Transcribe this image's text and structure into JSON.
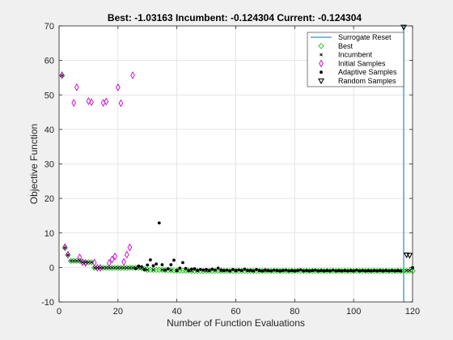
{
  "chart_data": {
    "type": "scatter",
    "title": "Best: -1.03163 Incumbent: -0.124304 Current: -0.124304",
    "xlabel": "Number of Function Evaluations",
    "ylabel": "Objective Function",
    "xlim": [
      0,
      120
    ],
    "ylim": [
      -10,
      70
    ],
    "xticks": [
      0,
      20,
      40,
      60,
      80,
      100,
      120
    ],
    "yticks": [
      -10,
      0,
      10,
      20,
      30,
      40,
      50,
      60,
      70
    ],
    "grid": true,
    "legend_position": "top-right",
    "surrogate_reset_x": [
      117
    ],
    "legend": [
      {
        "key": "surrogate_reset",
        "label": "Surrogate Reset"
      },
      {
        "key": "best",
        "label": "Best"
      },
      {
        "key": "incumbent",
        "label": "Incumbent"
      },
      {
        "key": "initial",
        "label": "Initial Samples"
      },
      {
        "key": "adaptive",
        "label": "Adaptive Samples"
      },
      {
        "key": "random",
        "label": "Random Samples"
      }
    ],
    "series": {
      "best": {
        "name": "Best",
        "color": "#00cc00",
        "x": [
          1,
          2,
          3,
          4,
          5,
          6,
          7,
          8,
          9,
          10,
          11,
          12,
          13,
          14,
          15,
          16,
          17,
          18,
          19,
          20,
          21,
          22,
          23,
          24,
          25,
          26,
          27,
          28,
          29,
          30,
          31,
          32,
          33,
          34,
          35,
          36,
          37,
          38,
          39,
          40,
          41,
          42,
          43,
          44,
          45,
          46,
          47,
          48,
          49,
          50,
          51,
          52,
          53,
          54,
          55,
          56,
          57,
          58,
          59,
          60,
          61,
          62,
          63,
          64,
          65,
          66,
          67,
          68,
          69,
          70,
          71,
          72,
          73,
          74,
          75,
          76,
          77,
          78,
          79,
          80,
          81,
          82,
          83,
          84,
          85,
          86,
          87,
          88,
          89,
          90,
          91,
          92,
          93,
          94,
          95,
          96,
          97,
          98,
          99,
          100,
          101,
          102,
          103,
          104,
          105,
          106,
          107,
          108,
          109,
          110,
          111,
          112,
          113,
          114,
          115,
          116,
          117,
          118,
          119,
          120
        ],
        "y": [
          55.6,
          5.7,
          3.6,
          1.9,
          1.9,
          1.9,
          1.9,
          1.5,
          1.5,
          1.5,
          1.5,
          -0.1,
          -0.1,
          -0.1,
          -0.1,
          -0.1,
          -0.1,
          -0.1,
          -0.1,
          -0.1,
          -0.1,
          -0.1,
          -0.1,
          -0.1,
          -0.1,
          -0.1,
          -0.1,
          -0.2,
          -0.4,
          -0.7,
          -0.7,
          -0.7,
          -0.7,
          -0.7,
          -0.7,
          -0.8,
          -0.8,
          -0.8,
          -0.9,
          -0.9,
          -0.9,
          -0.9,
          -0.9,
          -0.9,
          -1.0,
          -1.0,
          -1.0,
          -1.0,
          -1.0,
          -1.0,
          -1.0,
          -1.0,
          -1.0,
          -1.0,
          -1.0,
          -1.0,
          -1.0,
          -1.0,
          -1.0,
          -1.0,
          -1.0,
          -1.0,
          -1.0,
          -1.0,
          -1.0,
          -1.0,
          -1.0,
          -1.0,
          -1.0,
          -1.0,
          -1.0,
          -1.0,
          -1.0,
          -1.0,
          -1.0,
          -1.0,
          -1.0,
          -1.0,
          -1.0,
          -1.0,
          -1.0,
          -1.0,
          -1.0,
          -1.0,
          -1.0,
          -1.0,
          -1.0,
          -1.0,
          -1.0,
          -1.0,
          -1.0,
          -1.0,
          -1.0,
          -1.0,
          -1.0,
          -1.0,
          -1.0,
          -1.0,
          -1.0,
          -1.0,
          -1.0,
          -1.0,
          -1.0,
          -1.0,
          -1.0,
          -1.0,
          -1.0,
          -1.0,
          -1.0,
          -1.0,
          -1.0,
          -1.0,
          -1.0,
          -1.0,
          -1.0,
          -1.0,
          -1.0,
          -1.0,
          -1.0,
          -1.0
        ]
      },
      "incumbent": {
        "name": "Incumbent",
        "color": "#000000",
        "x": [
          1,
          2,
          3,
          4,
          5,
          6,
          7,
          8,
          9,
          10,
          11,
          12,
          13,
          14,
          15,
          16,
          17,
          18,
          19,
          20,
          21,
          22,
          23,
          24,
          25,
          26,
          27,
          28,
          29,
          30,
          32,
          35,
          38,
          40,
          45,
          50,
          55,
          60,
          65,
          70,
          75,
          80,
          85,
          90,
          95,
          100,
          105,
          110,
          115,
          116,
          118,
          119,
          120
        ],
        "y": [
          55.6,
          5.7,
          3.6,
          1.9,
          1.9,
          1.9,
          1.9,
          1.5,
          1.5,
          1.5,
          1.5,
          -0.1,
          -0.1,
          -0.1,
          -0.1,
          -0.1,
          -0.1,
          -0.1,
          -0.1,
          -0.1,
          -0.1,
          -0.1,
          -0.1,
          -0.1,
          -0.1,
          -0.1,
          -0.1,
          -0.2,
          -0.4,
          -0.7,
          -0.7,
          -0.7,
          -0.8,
          -0.9,
          -1.0,
          -1.0,
          -1.0,
          -1.0,
          -1.0,
          -1.0,
          -1.0,
          -1.0,
          -1.0,
          -1.0,
          -1.0,
          -1.0,
          -1.0,
          -1.0,
          -1.0,
          -1.0,
          -0.9,
          -0.9,
          -0.1
        ]
      },
      "initial": {
        "name": "Initial Samples",
        "color": "#cc00cc",
        "x": [
          1,
          2,
          3,
          5,
          6,
          7,
          8,
          9,
          10,
          11,
          12,
          13,
          14,
          15,
          16,
          17,
          18,
          19,
          20,
          21,
          22,
          23,
          24,
          25
        ],
        "y": [
          55.7,
          5.9,
          3.7,
          47.7,
          52.2,
          2.9,
          1.5,
          1.3,
          48.2,
          47.9,
          1.4,
          -0.1,
          -0.1,
          47.7,
          48.1,
          1.3,
          2.3,
          3.2,
          52.2,
          47.6,
          1.6,
          3.7,
          5.8,
          55.7
        ]
      },
      "adaptive": {
        "name": "Adaptive Samples",
        "color": "#000000",
        "x": [
          26,
          27,
          28,
          29,
          30,
          31,
          32,
          33,
          34,
          35,
          36,
          37,
          38,
          39,
          40,
          41,
          42,
          43,
          44,
          45,
          46,
          47,
          48,
          49,
          50,
          51,
          52,
          53,
          54,
          55,
          56,
          57,
          58,
          59,
          60,
          61,
          62,
          63,
          64,
          65,
          66,
          67,
          68,
          69,
          70,
          71,
          72,
          73,
          74,
          75,
          76,
          77,
          78,
          79,
          80,
          81,
          82,
          83,
          84,
          85,
          86,
          87,
          88,
          89,
          90,
          91,
          92,
          93,
          94,
          95,
          96,
          97,
          98,
          99,
          100,
          101,
          102,
          103,
          104,
          105,
          106,
          107,
          108,
          109,
          110,
          111,
          112,
          113,
          114,
          115,
          116,
          120
        ],
        "y": [
          -0.3,
          0.4,
          0.2,
          -0.7,
          0.7,
          2.2,
          0.5,
          1.0,
          12.9,
          0.8,
          -0.8,
          -0.4,
          0.8,
          2.1,
          -0.9,
          -0.2,
          1.4,
          -0.3,
          -0.9,
          -0.5,
          -0.4,
          -0.9,
          -0.6,
          -0.8,
          -0.6,
          -0.9,
          -0.5,
          -0.8,
          -0.2,
          -0.7,
          -0.9,
          -0.8,
          -1.0,
          -0.6,
          -0.9,
          -0.7,
          -0.9,
          -0.5,
          -0.9,
          -0.8,
          -1.0,
          -0.6,
          -0.9,
          -1.0,
          -0.7,
          -0.9,
          -1.0,
          -0.8,
          -0.9,
          -1.0,
          -0.9,
          -0.8,
          -1.0,
          -0.9,
          -1.0,
          -0.9,
          -0.7,
          -1.0,
          -0.9,
          -1.0,
          -0.9,
          -0.8,
          -1.0,
          -0.9,
          -1.0,
          -0.9,
          -1.0,
          -0.8,
          -1.0,
          -0.9,
          -1.0,
          -0.9,
          -1.0,
          -0.9,
          -1.0,
          -0.8,
          -1.0,
          -0.9,
          -1.0,
          -0.9,
          -1.0,
          -0.9,
          -1.0,
          -0.9,
          -1.0,
          -0.9,
          -1.0,
          -0.9,
          -1.0,
          -0.9,
          -1.0,
          -0.1
        ]
      },
      "random": {
        "name": "Random Samples",
        "color": "#000000",
        "x": [
          117,
          118,
          119
        ],
        "y": [
          69.6,
          3.6,
          3.5
        ]
      }
    }
  }
}
